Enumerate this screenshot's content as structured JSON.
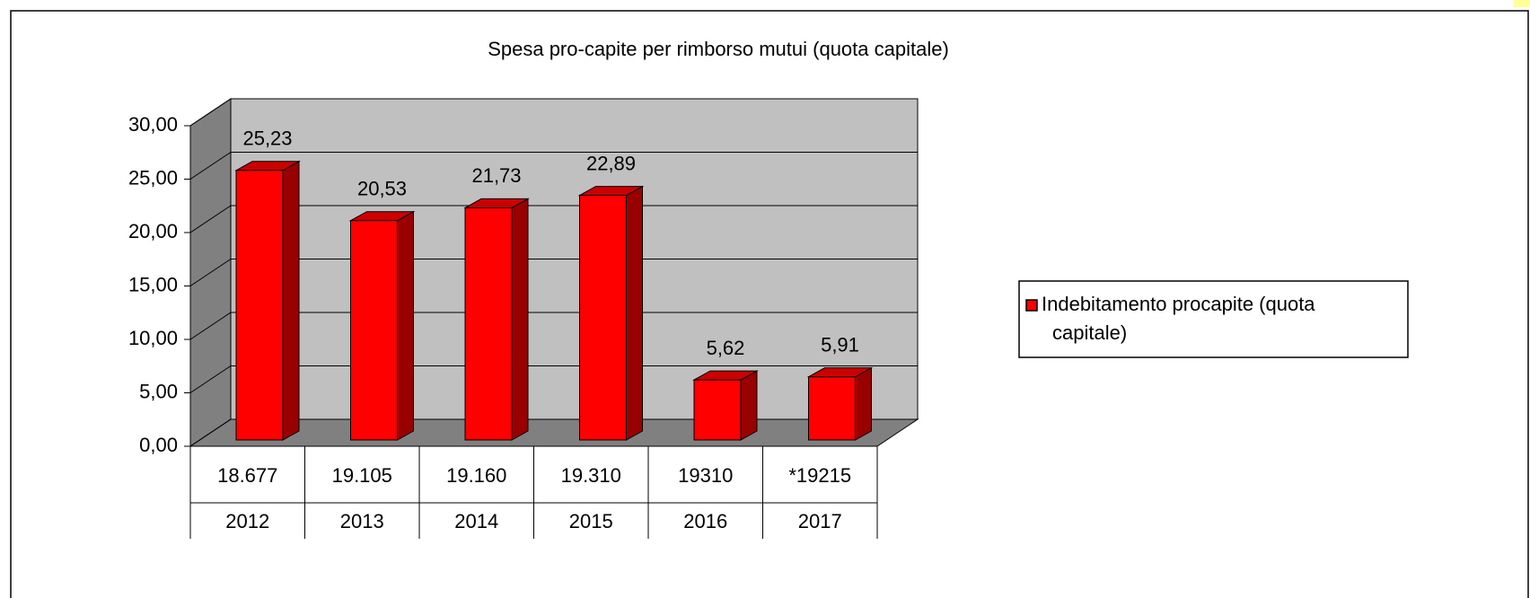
{
  "chart_data": {
    "type": "bar3d",
    "title": "Spesa pro-capite per rimborso mutui (quota capitale)",
    "categories": [
      "2012",
      "2013",
      "2014",
      "2015",
      "2016",
      "2017"
    ],
    "sub_labels": [
      "18.677",
      "19.105",
      "19.160",
      "19.310",
      "19310",
      "*19215"
    ],
    "series": [
      {
        "name": "Indebitamento procapite (quota capitale)",
        "color": "#ff0000",
        "values": [
          25.23,
          20.53,
          21.73,
          22.89,
          5.62,
          5.91
        ],
        "value_labels": [
          "25,23",
          "20,53",
          "21,73",
          "22,89",
          "5,62",
          "5,91"
        ]
      }
    ],
    "ylim": [
      0,
      30
    ],
    "yticks": [
      {
        "value": 0,
        "label": "0,00"
      },
      {
        "value": 5,
        "label": "5,00"
      },
      {
        "value": 10,
        "label": "10,00"
      },
      {
        "value": 15,
        "label": "15,00"
      },
      {
        "value": 20,
        "label": "20,00"
      },
      {
        "value": 25,
        "label": "25,00"
      },
      {
        "value": 30,
        "label": "30,00"
      }
    ],
    "grid": true,
    "legend": "right"
  }
}
